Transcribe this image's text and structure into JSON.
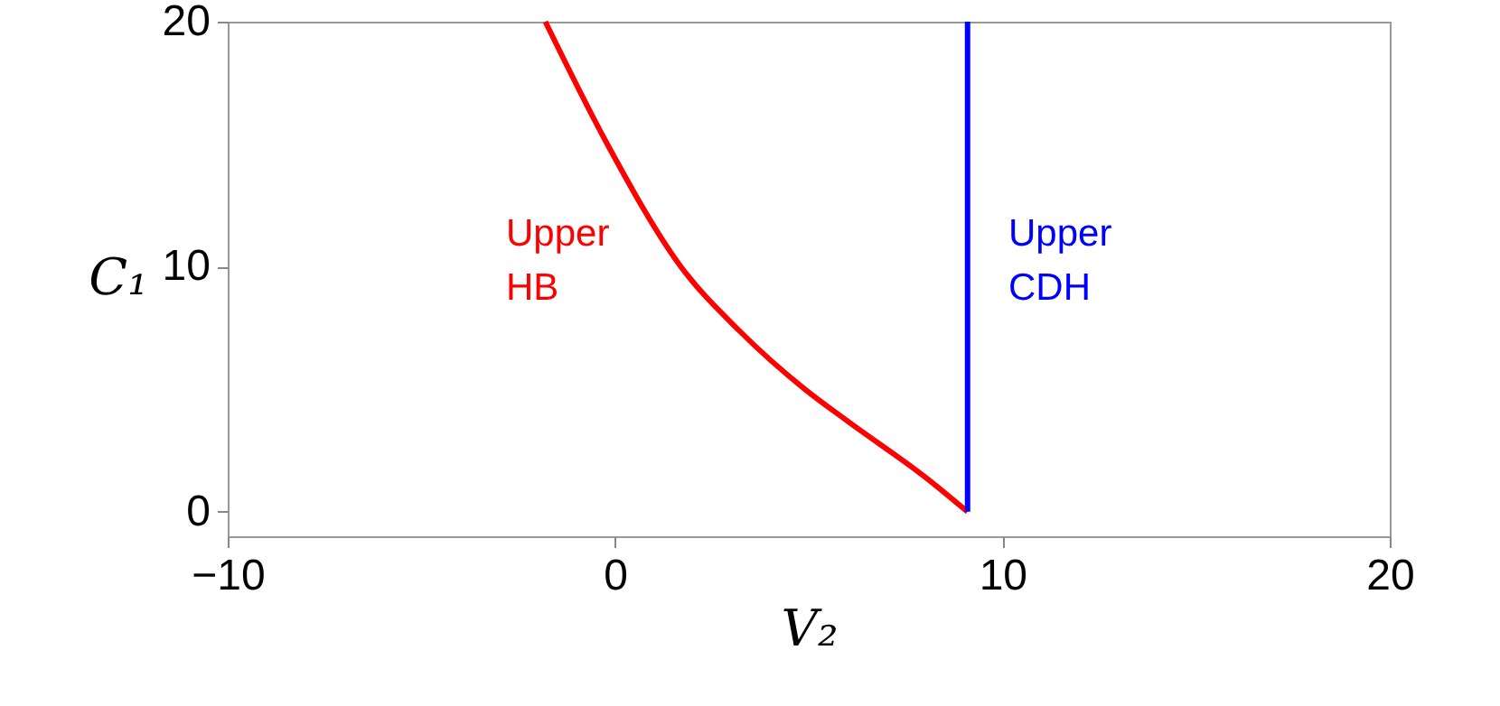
{
  "chart_data": {
    "type": "line",
    "xlabel": "V₂",
    "ylabel": "C₁",
    "xlim": [
      -10,
      20
    ],
    "ylim": [
      -1,
      20
    ],
    "xticks": [
      -10,
      0,
      10,
      20
    ],
    "yticks": [
      0,
      10,
      20
    ],
    "grid": false,
    "marker": "none",
    "line_style": "solid",
    "series": [
      {
        "color": "#ff0000",
        "x": [
          -1.8,
          -0.2,
          1.7,
          3.2,
          4.9,
          6.0,
          8.1,
          9.1
        ],
        "values": [
          20,
          15,
          10,
          7.4,
          5,
          3.7,
          1.3,
          0
        ]
      },
      {
        "color": "#0000ff",
        "x": [
          9.1,
          9.1
        ],
        "values": [
          0,
          20
        ]
      }
    ],
    "annotations": [
      "Upper\nHB",
      "Upper\nCDH"
    ]
  }
}
